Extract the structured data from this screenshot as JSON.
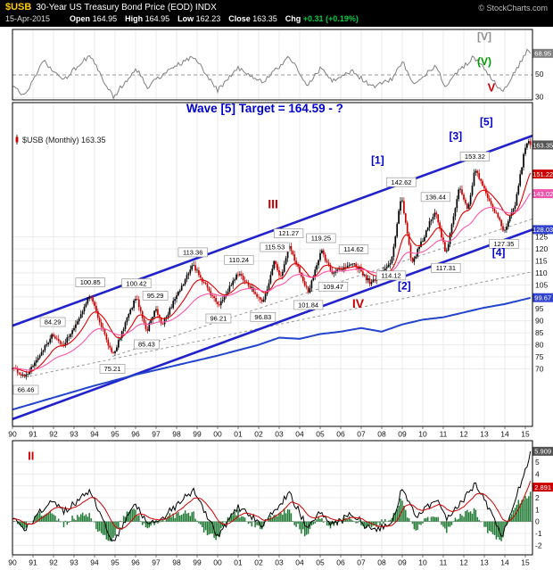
{
  "header": {
    "symbol": "$USB",
    "title": "30-Year US Treasury Bond Price (EOD) INDX",
    "copyright": "© StockCharts.com",
    "date": "15-Apr-2015",
    "quote": [
      {
        "label": "Open",
        "value": "164.95"
      },
      {
        "label": "High",
        "value": "164.95"
      },
      {
        "label": "Low",
        "value": "162.23"
      },
      {
        "label": "Close",
        "value": "163.35"
      },
      {
        "label": "Chg",
        "value": "+0.31 (+0.19%)"
      }
    ]
  },
  "colors": {
    "header_bg": "#000000",
    "symbol": "#ffcc00",
    "grid": "#e6e6e6",
    "candle_up": "#000000",
    "candle_down": "#cc0000",
    "ema_fast": "#e00000",
    "ema_slow": "#ff55aa",
    "channel": "#2222cc",
    "overlay": "#2244cc",
    "oscillator": "#808080",
    "macd_line": "#000000",
    "signal_line": "#cc0000",
    "histogram": "#1f7a33",
    "annotation_blue": "#0000cc",
    "annotation_red": "#cc0000"
  },
  "chart_data": {
    "type": "candlestick",
    "title": "$USB (Monthly)",
    "x_domain": [
      1990.0,
      2015.35
    ],
    "x_tick_years": [
      "90",
      "91",
      "92",
      "93",
      "94",
      "95",
      "96",
      "97",
      "98",
      "99",
      "00",
      "01",
      "02",
      "03",
      "04",
      "05",
      "06",
      "07",
      "08",
      "09",
      "10",
      "11",
      "12",
      "13",
      "14",
      "15"
    ],
    "panels": {
      "oscillator": {
        "y_domain": [
          28,
          90
        ],
        "dashed_mid": 50,
        "ticks": [
          {
            "v": 50,
            "label": "50"
          },
          {
            "v": 30,
            "label": "30"
          }
        ],
        "last_value": 68.95,
        "noise_amp": 2.2,
        "axis_boxes": [
          {
            "v": 68.95,
            "text": "68.95",
            "bg": "#808080"
          }
        ],
        "pivots": [
          [
            1990,
            40
          ],
          [
            1990.6,
            31
          ],
          [
            1991.5,
            62
          ],
          [
            1992.5,
            46
          ],
          [
            1993.8,
            68
          ],
          [
            1994.9,
            30
          ],
          [
            1996,
            56
          ],
          [
            1996.6,
            39
          ],
          [
            1997.3,
            50
          ],
          [
            1998.8,
            67
          ],
          [
            2000,
            36
          ],
          [
            2001,
            56
          ],
          [
            2002.2,
            43
          ],
          [
            2003.5,
            66
          ],
          [
            2004.4,
            41
          ],
          [
            2005,
            55
          ],
          [
            2005.6,
            45
          ],
          [
            2006.6,
            53
          ],
          [
            2007.5,
            39
          ],
          [
            2008.5,
            46
          ],
          [
            2009,
            62
          ],
          [
            2009.6,
            40
          ],
          [
            2010.6,
            58
          ],
          [
            2011.1,
            41
          ],
          [
            2012.5,
            66
          ],
          [
            2013.9,
            35
          ],
          [
            2015.1,
            71
          ],
          [
            2015.29,
            68.95
          ]
        ],
        "annotations": [
          {
            "text": "[V]",
            "x": 2013.0,
            "v": 80.5,
            "color": "#909090",
            "size": 12,
            "bold": true
          },
          {
            "text": "(V)",
            "x": 2013.0,
            "v": 58.5,
            "color": "#009900",
            "size": 12,
            "bold": true
          },
          {
            "text": "V",
            "x": 2013.35,
            "v": 35.5,
            "color": "#cc0000",
            "size": 13,
            "bold": true
          }
        ]
      },
      "price": {
        "series_label": "$USB (Monthly) 163.35",
        "y_domain": [
          46,
          181
        ],
        "ticks": [
          125,
          120,
          115,
          110,
          105,
          100,
          95,
          90,
          85,
          80,
          75,
          70
        ],
        "last_close": 163.35,
        "noise_amp": 1.8,
        "ema_fast_period": 15,
        "ema_slow_period": 40,
        "close_pivots": [
          [
            1990.0,
            70.5
          ],
          [
            1990.58,
            66.46
          ],
          [
            1991.96,
            84.29
          ],
          [
            1992.46,
            79
          ],
          [
            1993.79,
            100.85
          ],
          [
            1994.87,
            75.21
          ],
          [
            1996.04,
            100.42
          ],
          [
            1996.54,
            85.43
          ],
          [
            1996.96,
            95.29
          ],
          [
            1997.29,
            88.5
          ],
          [
            1998.79,
            113.36
          ],
          [
            2000.04,
            96.21
          ],
          [
            2001.04,
            110.24
          ],
          [
            2002.21,
            96.83
          ],
          [
            2002.79,
            115.53
          ],
          [
            2003.04,
            107
          ],
          [
            2003.46,
            121.27
          ],
          [
            2004.42,
            101.84
          ],
          [
            2005.04,
            119.25
          ],
          [
            2005.63,
            109.47
          ],
          [
            2006.63,
            114.62
          ],
          [
            2007.46,
            105.5
          ],
          [
            2008.46,
            114.12
          ],
          [
            2008.96,
            142.62
          ],
          [
            2009.46,
            113.5
          ],
          [
            2010.63,
            136.44
          ],
          [
            2011.13,
            117.31
          ],
          [
            2011.79,
            146
          ],
          [
            2012.21,
            136
          ],
          [
            2012.54,
            153.32
          ],
          [
            2013.96,
            127.35
          ],
          [
            2014.5,
            138
          ],
          [
            2015.04,
            165
          ],
          [
            2015.29,
            163.35
          ]
        ],
        "callouts": [
          {
            "x": 1990.58,
            "p": 66.46,
            "text": "66.46",
            "side": "below"
          },
          {
            "x": 1991.96,
            "p": 84.29,
            "text": "84.29",
            "side": "above"
          },
          {
            "x": 1993.79,
            "p": 100.85,
            "text": "100.85",
            "side": "above"
          },
          {
            "x": 1994.87,
            "p": 75.21,
            "text": "75.21",
            "side": "below"
          },
          {
            "x": 1996.04,
            "p": 100.42,
            "text": "100.42",
            "side": "above"
          },
          {
            "x": 1996.54,
            "p": 85.43,
            "text": "85.43",
            "side": "below"
          },
          {
            "x": 1996.96,
            "p": 95.29,
            "text": "95.29",
            "side": "above"
          },
          {
            "x": 1998.79,
            "p": 113.36,
            "text": "113.36",
            "side": "above"
          },
          {
            "x": 2000.04,
            "p": 96.21,
            "text": "96.21",
            "side": "below"
          },
          {
            "x": 2001.04,
            "p": 110.24,
            "text": "110.24",
            "side": "above"
          },
          {
            "x": 2002.21,
            "p": 96.83,
            "text": "96.83",
            "side": "below"
          },
          {
            "x": 2002.79,
            "p": 115.53,
            "text": "115.53",
            "side": "above"
          },
          {
            "x": 2003.46,
            "p": 121.27,
            "text": "121.27",
            "side": "above"
          },
          {
            "x": 2004.42,
            "p": 101.84,
            "text": "101.84",
            "side": "below"
          },
          {
            "x": 2005.04,
            "p": 119.25,
            "text": "119.25",
            "side": "above"
          },
          {
            "x": 2005.63,
            "p": 109.47,
            "text": "109.47",
            "side": "below"
          },
          {
            "x": 2006.63,
            "p": 114.62,
            "text": "114.62",
            "side": "above"
          },
          {
            "x": 2008.46,
            "p": 114.12,
            "text": "114.12",
            "side": "below"
          },
          {
            "x": 2008.96,
            "p": 142.62,
            "text": "142.62",
            "side": "above"
          },
          {
            "x": 2010.63,
            "p": 136.44,
            "text": "136.44",
            "side": "above"
          },
          {
            "x": 2011.13,
            "p": 117.31,
            "text": "117.31",
            "side": "below"
          },
          {
            "x": 2012.54,
            "p": 153.32,
            "text": "153.32",
            "side": "above"
          },
          {
            "x": 2013.96,
            "p": 127.35,
            "text": "127.35",
            "side": "below"
          }
        ],
        "channel": {
          "upper": [
            [
              1990.0,
              88
            ],
            [
              2015.35,
              167.2
            ]
          ],
          "lower": [
            [
              1990.0,
              49
            ],
            [
              2015.35,
              128.03
            ]
          ]
        },
        "trendlines": [
          [
            [
              1990.58,
              66.46
            ],
            [
              2015.35,
              110.5
            ]
          ],
          [
            [
              1994.87,
              75.21
            ],
            [
              2015.35,
              132.5
            ]
          ]
        ],
        "overlay": {
          "label": "99.67",
          "pivots": [
            [
              1990.0,
              53
            ],
            [
              1992,
              58
            ],
            [
              1994,
              63
            ],
            [
              1996,
              67.5
            ],
            [
              1998,
              71.5
            ],
            [
              2000,
              75.5
            ],
            [
              2002,
              80
            ],
            [
              2003,
              83
            ],
            [
              2004,
              82.5
            ],
            [
              2005,
              84.5
            ],
            [
              2006,
              85.5
            ],
            [
              2007,
              87
            ],
            [
              2008,
              85.5
            ],
            [
              2009,
              88.5
            ],
            [
              2010,
              90.5
            ],
            [
              2011,
              91.5
            ],
            [
              2012,
              93.5
            ],
            [
              2013,
              95.5
            ],
            [
              2014,
              97
            ],
            [
              2015.29,
              99.67
            ]
          ]
        },
        "axis_boxes": [
          {
            "v": 163.35,
            "text": "163.35",
            "bg": "#555555"
          },
          {
            "v": 151.22,
            "text": "151.22",
            "bg": "#cc0000"
          },
          {
            "v": 143.02,
            "text": "143.02",
            "bg": "#ee55aa"
          },
          {
            "v": 128.03,
            "text": "128.03",
            "bg": "#3344cc"
          },
          {
            "v": 99.67,
            "text": "99.67",
            "bg": "#3344cc"
          }
        ],
        "annotations": [
          {
            "text": "Wave [5] Target = 164.59 - ?",
            "x": 2002.3,
            "p": 177,
            "color": "#0000cc",
            "size": 13.5,
            "bold": true
          },
          {
            "text": "[5]",
            "x": 2013.1,
            "p": 171.5,
            "color": "#0000cc",
            "size": 12,
            "bold": true
          },
          {
            "text": "[3]",
            "x": 2011.6,
            "p": 165.5,
            "color": "#0000cc",
            "size": 12,
            "bold": true
          },
          {
            "text": "[1]",
            "x": 2007.8,
            "p": 155.5,
            "color": "#0000cc",
            "size": 12,
            "bold": true
          },
          {
            "text": "[2]",
            "x": 2009.1,
            "p": 103,
            "color": "#0000cc",
            "size": 12,
            "bold": true
          },
          {
            "text": "[4]",
            "x": 2013.7,
            "p": 117,
            "color": "#0000cc",
            "size": 12,
            "bold": true
          },
          {
            "text": "III",
            "x": 2002.7,
            "p": 137,
            "color": "#cc0000",
            "size": 14,
            "bold": true
          },
          {
            "text": "IV",
            "x": 2006.85,
            "p": 95.5,
            "color": "#cc0000",
            "size": 14,
            "bold": true
          }
        ]
      },
      "macd": {
        "y_domain": [
          -2.8,
          6.8
        ],
        "ticks": [
          5,
          4,
          3,
          2,
          1,
          0,
          -1,
          -2
        ],
        "noise_amp": 0.3,
        "signal_period": 13,
        "last_values": {
          "macd": 5.909,
          "signal": 2.891
        },
        "pivots": [
          [
            1990,
            0.2
          ],
          [
            1990.6,
            -0.8
          ],
          [
            1991.8,
            1.8
          ],
          [
            1992.5,
            0.8
          ],
          [
            1993.8,
            2.6
          ],
          [
            1994.9,
            -1.8
          ],
          [
            1996,
            1.5
          ],
          [
            1996.6,
            -0.4
          ],
          [
            1997.3,
            0.3
          ],
          [
            1998.8,
            2.6
          ],
          [
            2000,
            -1.2
          ],
          [
            2001,
            1.2
          ],
          [
            2002.2,
            -0.3
          ],
          [
            2003.5,
            2.4
          ],
          [
            2004.4,
            -0.6
          ],
          [
            2005,
            0.8
          ],
          [
            2005.6,
            -0.2
          ],
          [
            2006.6,
            0.6
          ],
          [
            2007.5,
            -0.8
          ],
          [
            2008.5,
            -0.2
          ],
          [
            2009,
            2.8
          ],
          [
            2009.7,
            0.5
          ],
          [
            2010.7,
            1.8
          ],
          [
            2011.2,
            0.2
          ],
          [
            2012.6,
            3.2
          ],
          [
            2013.9,
            -1.2
          ],
          [
            2015.29,
            5.909
          ]
        ],
        "axis_boxes": [
          {
            "v": 5.909,
            "text": "5.909",
            "bg": "#555555"
          },
          {
            "v": 2.891,
            "text": "2.891",
            "bg": "#cc0000"
          }
        ],
        "annotations": [
          {
            "text": "II",
            "x": 1990.9,
            "v": 5.2,
            "color": "#cc0000",
            "size": 13,
            "bold": true
          }
        ]
      }
    }
  }
}
